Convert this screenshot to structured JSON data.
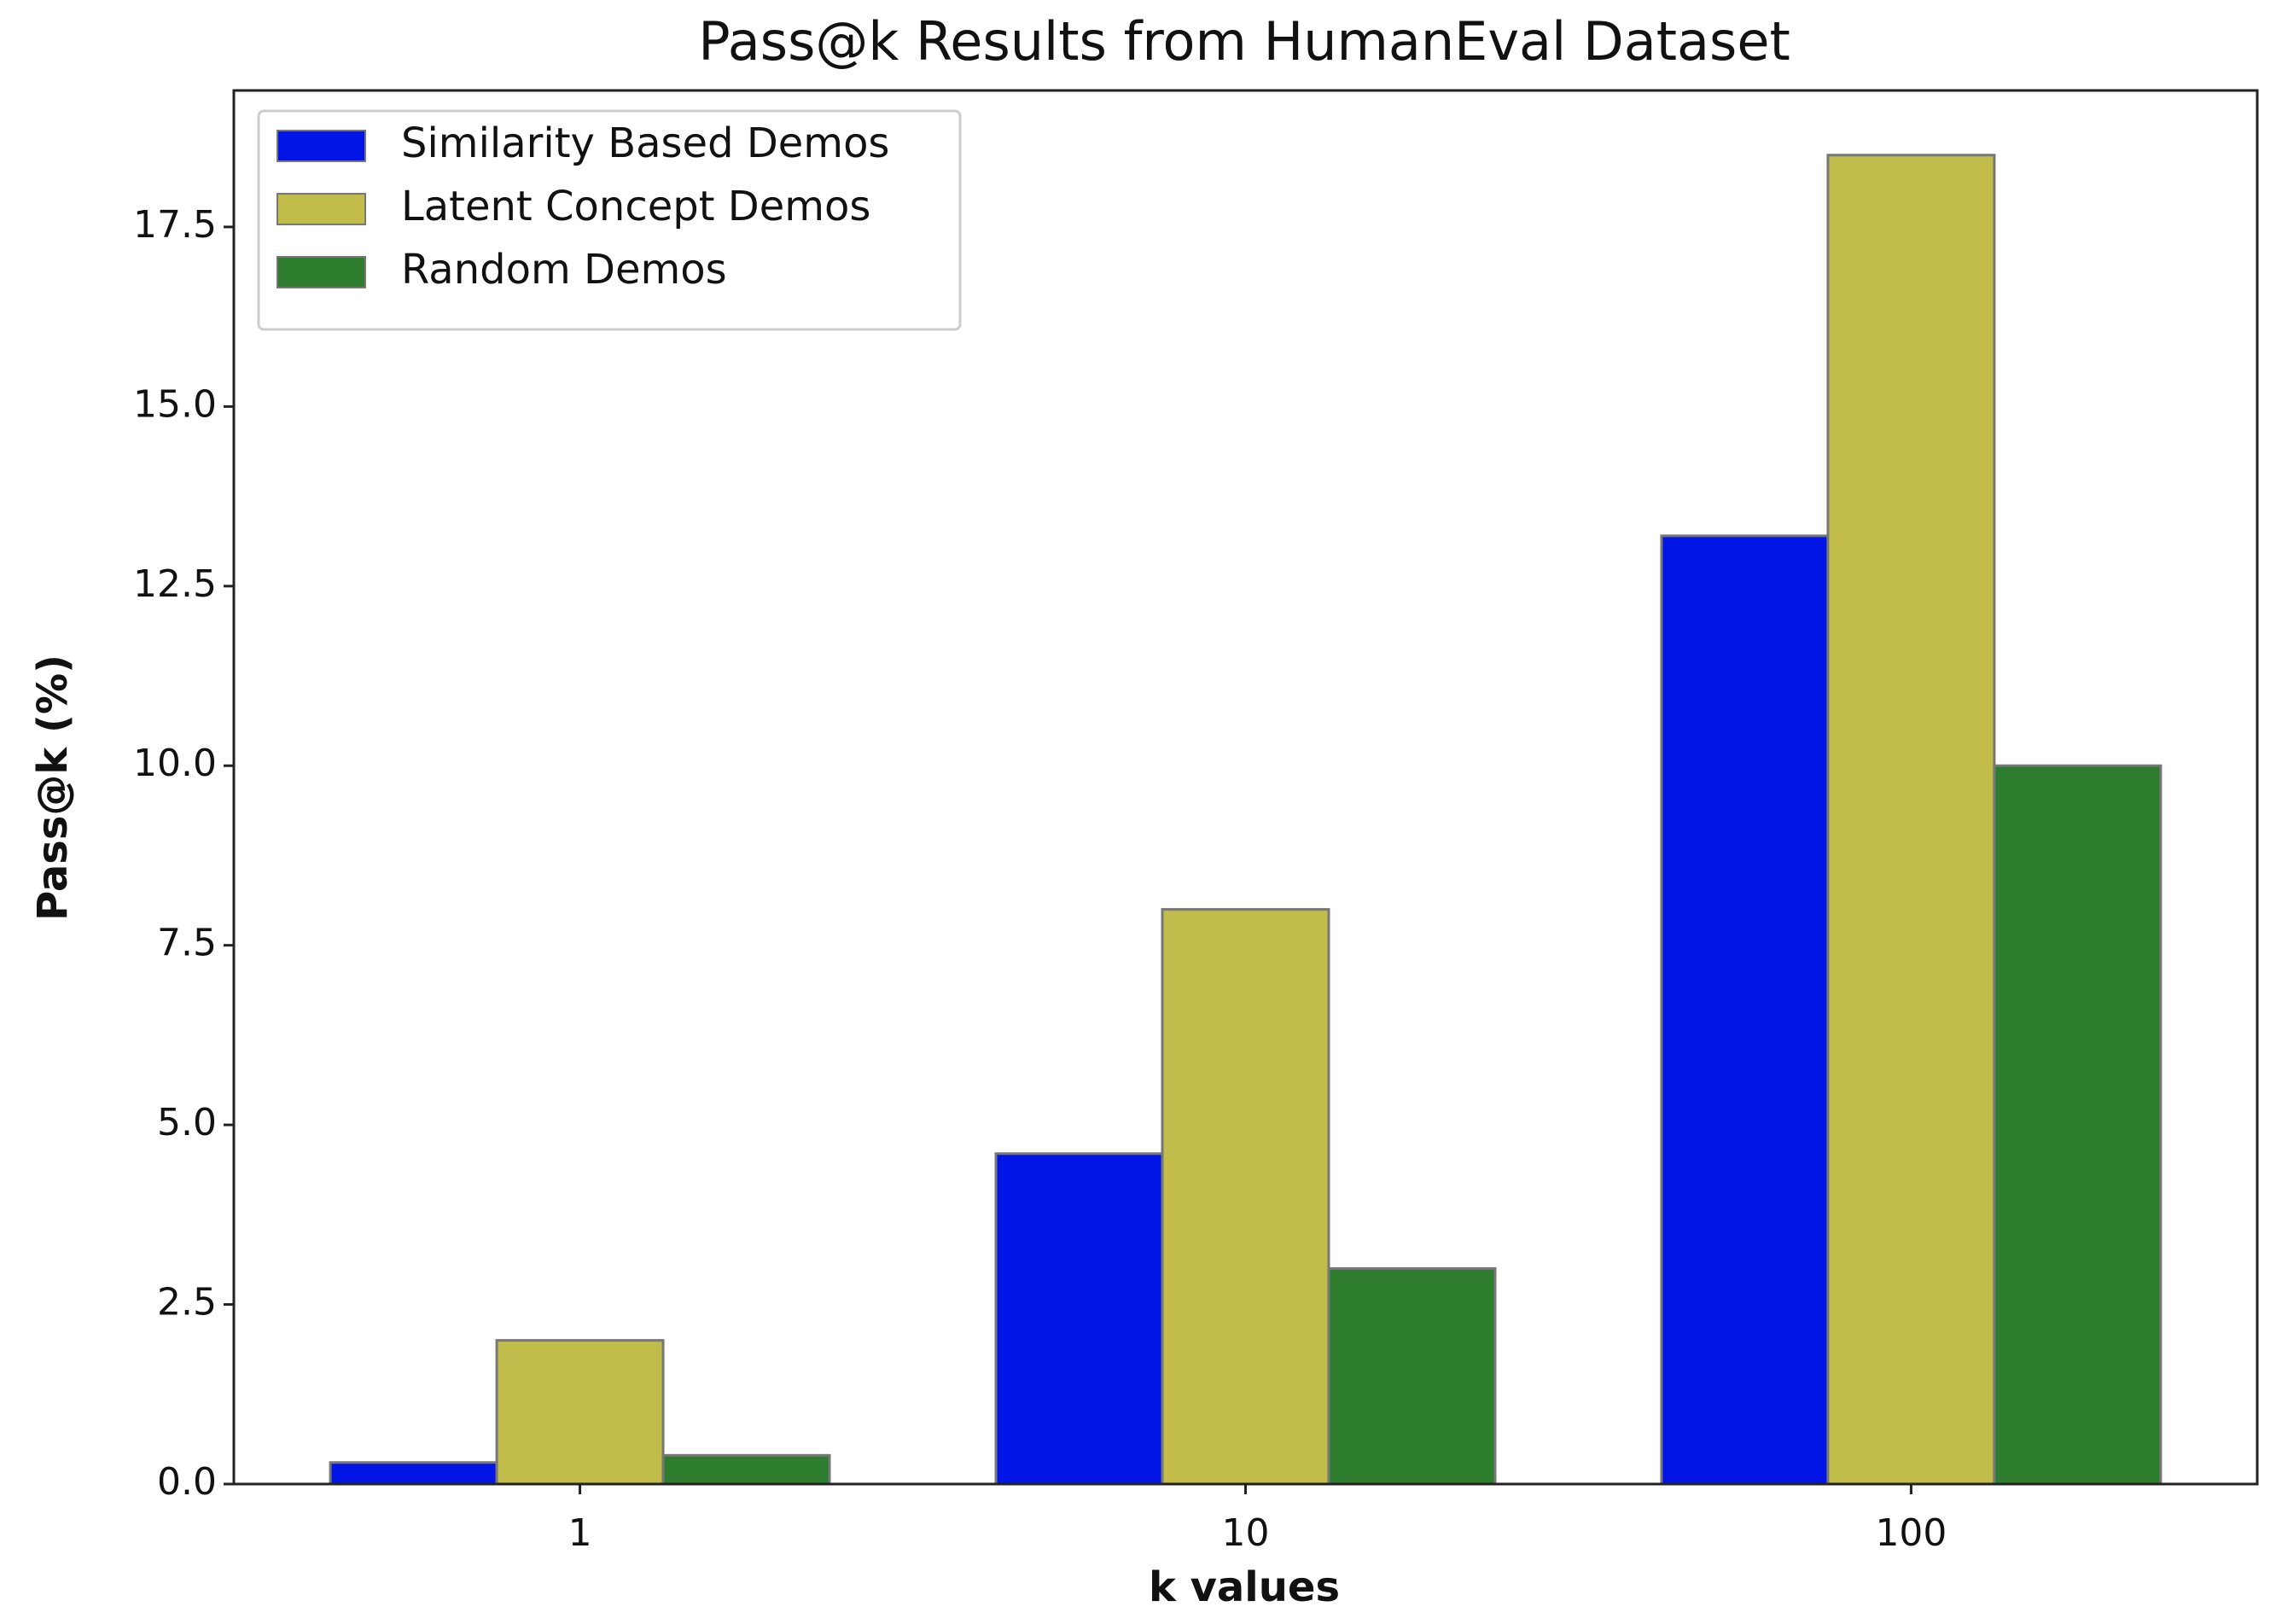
{
  "chart_data": {
    "type": "bar",
    "title": "Pass@k Results from HumanEval Dataset",
    "x_label": "k values",
    "y_label": "Pass@k (%)",
    "categories": [
      "1",
      "10",
      "100"
    ],
    "series": [
      {
        "name": "Similarity Based Demos",
        "color": "#0015e6",
        "values": [
          0.3,
          4.6,
          13.2
        ]
      },
      {
        "name": "Latent Concept Demos",
        "color": "#c2bd4a",
        "values": [
          2.0,
          8.0,
          18.5
        ]
      },
      {
        "name": "Random Demos",
        "color": "#2e7d2e",
        "values": [
          0.4,
          3.0,
          10.0
        ]
      }
    ],
    "ylim": [
      0,
      19.4
    ],
    "yticks": [
      {
        "value": 0,
        "label": "0.0"
      },
      {
        "value": 2.5,
        "label": "2.5"
      },
      {
        "value": 5,
        "label": "5.0"
      },
      {
        "value": 7.5,
        "label": "7.5"
      },
      {
        "value": 10,
        "label": "10.0"
      },
      {
        "value": 12.5,
        "label": "12.5"
      },
      {
        "value": 15,
        "label": "15.0"
      },
      {
        "value": 17.5,
        "label": "17.5"
      }
    ],
    "legend": "upper left",
    "grid": false
  }
}
